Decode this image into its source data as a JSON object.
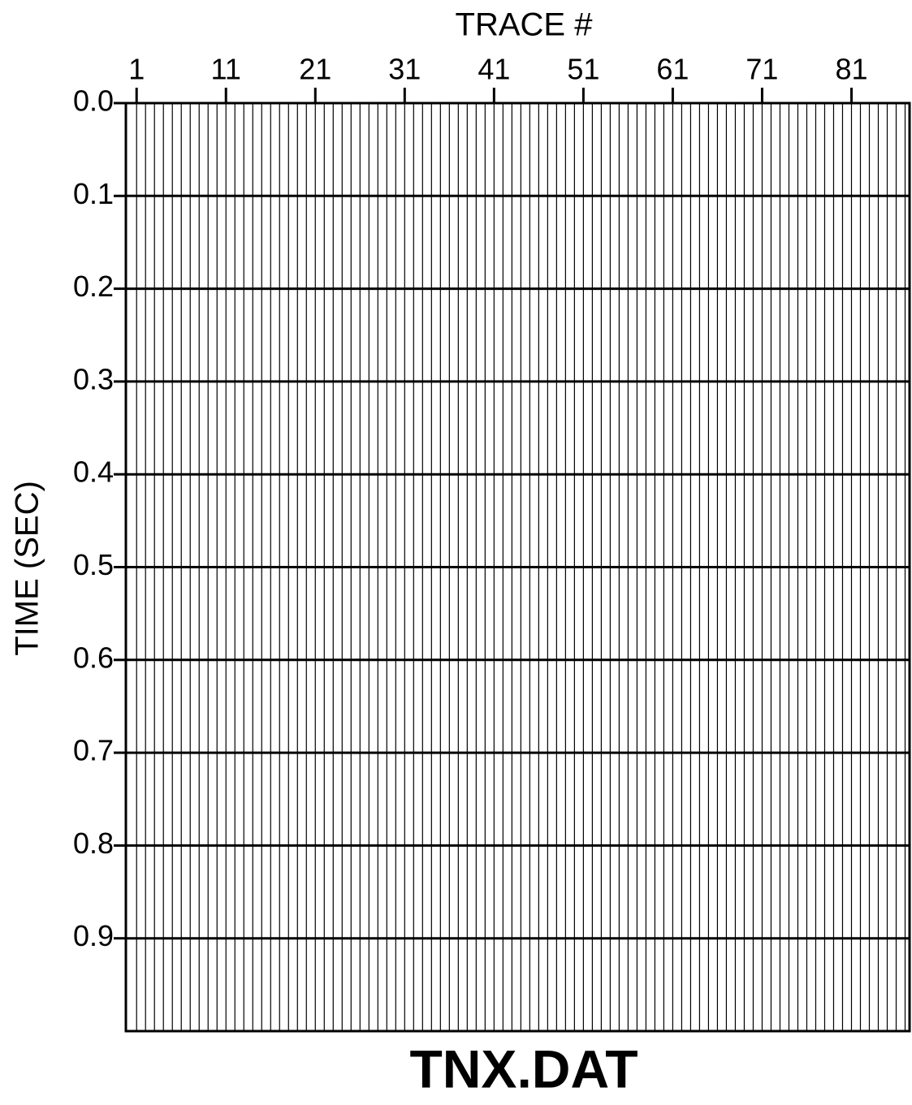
{
  "chart_data": {
    "type": "seismic",
    "title": "TNX.DAT",
    "x_label": "TRACE #",
    "y_label": "TIME (SEC)",
    "xlim": [
      -0.2,
      87.5
    ],
    "xticks": [
      1,
      11,
      21,
      31,
      41,
      51,
      61,
      71,
      81
    ],
    "ylim": [
      0,
      1.0
    ],
    "yticks": [
      {
        "value": 0,
        "label": "0.0"
      },
      0.1,
      0.2,
      0.3,
      0.4,
      0.5,
      0.6,
      0.7,
      0.8,
      0.9
    ],
    "grid": true
  }
}
